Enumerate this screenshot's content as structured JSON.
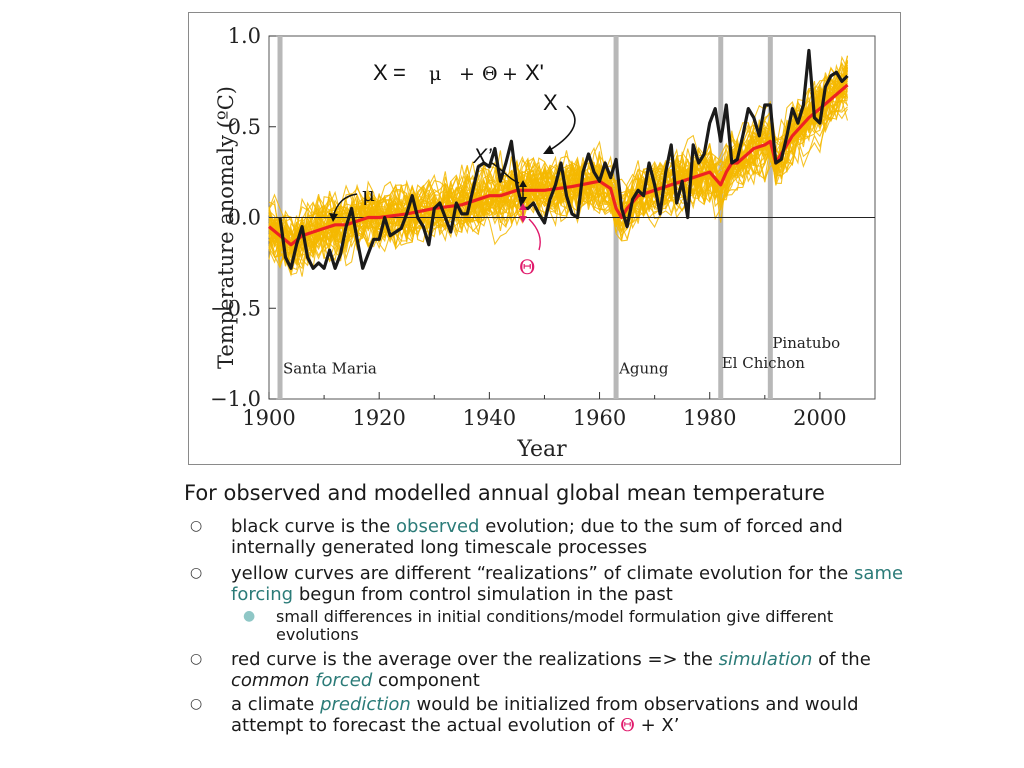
{
  "chart_data": {
    "type": "line",
    "xlabel": "Year",
    "ylabel": "Temperature anomaly (ºC)",
    "xlim": [
      1900,
      2010
    ],
    "ylim": [
      -1.0,
      1.0
    ],
    "x_ticks": [
      "1900",
      "1920",
      "1940",
      "1960",
      "1980",
      "2000"
    ],
    "y_ticks": [
      "−1.0",
      "−0.5",
      "0.0",
      "0.5",
      "1.0"
    ],
    "zero_line": 0.0,
    "series": [
      {
        "name": "observed",
        "color": "#1a1a1a",
        "x": [
          1902,
          1903,
          1904,
          1905,
          1906,
          1907,
          1908,
          1909,
          1910,
          1911,
          1912,
          1913,
          1914,
          1915,
          1916,
          1917,
          1918,
          1919,
          1920,
          1921,
          1922,
          1923,
          1924,
          1925,
          1926,
          1927,
          1928,
          1929,
          1930,
          1931,
          1932,
          1933,
          1934,
          1935,
          1936,
          1937,
          1938,
          1939,
          1940,
          1941,
          1942,
          1943,
          1944,
          1945,
          1946,
          1947,
          1948,
          1949,
          1950,
          1951,
          1952,
          1953,
          1954,
          1955,
          1956,
          1957,
          1958,
          1959,
          1960,
          1961,
          1962,
          1963,
          1964,
          1965,
          1966,
          1967,
          1968,
          1969,
          1970,
          1971,
          1972,
          1973,
          1974,
          1975,
          1976,
          1977,
          1978,
          1979,
          1980,
          1981,
          1982,
          1983,
          1984,
          1985,
          1986,
          1987,
          1988,
          1989,
          1990,
          1991,
          1992,
          1993,
          1994,
          1995,
          1996,
          1997,
          1998,
          1999,
          2000,
          2001,
          2002,
          2003,
          2004,
          2005
        ],
        "y": [
          0.0,
          -0.22,
          -0.28,
          -0.15,
          -0.05,
          -0.22,
          -0.28,
          -0.25,
          -0.28,
          -0.18,
          -0.28,
          -0.2,
          -0.05,
          0.05,
          -0.12,
          -0.28,
          -0.2,
          -0.12,
          -0.12,
          0.0,
          -0.1,
          -0.08,
          -0.06,
          0.02,
          0.12,
          0.0,
          -0.05,
          -0.15,
          0.05,
          0.08,
          0.0,
          -0.08,
          0.08,
          0.02,
          0.02,
          0.15,
          0.28,
          0.3,
          0.28,
          0.38,
          0.2,
          0.3,
          0.42,
          0.18,
          0.05,
          0.05,
          0.08,
          0.02,
          -0.03,
          0.1,
          0.18,
          0.3,
          0.12,
          0.02,
          0.0,
          0.25,
          0.35,
          0.25,
          0.2,
          0.3,
          0.22,
          0.32,
          0.05,
          -0.05,
          0.1,
          0.15,
          0.12,
          0.3,
          0.18,
          0.02,
          0.25,
          0.4,
          0.08,
          0.2,
          0.0,
          0.4,
          0.3,
          0.35,
          0.52,
          0.6,
          0.42,
          0.62,
          0.3,
          0.32,
          0.45,
          0.6,
          0.55,
          0.45,
          0.62,
          0.62,
          0.3,
          0.32,
          0.45,
          0.6,
          0.52,
          0.62,
          0.92,
          0.55,
          0.52,
          0.72,
          0.78,
          0.8,
          0.75,
          0.78
        ]
      },
      {
        "name": "simulation mean",
        "color": "#ee2222",
        "x": [
          1900,
          1902,
          1904,
          1906,
          1908,
          1910,
          1912,
          1914,
          1916,
          1918,
          1920,
          1925,
          1930,
          1935,
          1940,
          1942,
          1945,
          1950,
          1955,
          1960,
          1962,
          1963,
          1964,
          1965,
          1967,
          1970,
          1975,
          1980,
          1982,
          1983,
          1984,
          1985,
          1988,
          1990,
          1991,
          1992,
          1993,
          1995,
          1998,
          2000,
          2005
        ],
        "y": [
          -0.05,
          -0.1,
          -0.15,
          -0.1,
          -0.08,
          -0.06,
          -0.04,
          -0.04,
          -0.02,
          0.0,
          0.0,
          0.02,
          0.05,
          0.07,
          0.12,
          0.12,
          0.15,
          0.15,
          0.17,
          0.2,
          0.16,
          0.05,
          0.0,
          0.05,
          0.12,
          0.15,
          0.2,
          0.25,
          0.18,
          0.25,
          0.3,
          0.3,
          0.38,
          0.4,
          0.42,
          0.3,
          0.35,
          0.45,
          0.55,
          0.6,
          0.73
        ]
      }
    ],
    "volcanoes": [
      {
        "name": "Santa Maria",
        "year": 1902
      },
      {
        "name": "Agung",
        "year": 1963
      },
      {
        "name": "El Chichon",
        "year": 1982
      },
      {
        "name": "Pinatubo",
        "year": 1991
      }
    ],
    "annotations": {
      "equation": [
        "X",
        "=",
        "μ",
        "+",
        "Θ",
        "+",
        "X'"
      ],
      "x_label": "X",
      "xprime_label": "X’",
      "mu_label": "μ",
      "theta_label": "Θ"
    },
    "colors": {
      "realizations": "#f5b800",
      "observed": "#1a1a1a",
      "mean": "#ee2222",
      "volcano_line": "#b8b8b8",
      "theta": "#e0196b"
    }
  },
  "text": {
    "caption": "For observed and modelled annual global mean temperature",
    "b1_pre": "black curve is the ",
    "b1_hl": "observed",
    "b1_post": " evolution; due to the sum of forced and internally generated long timescale processes",
    "b2_pre": "yellow curves are different “realizations” of climate evolution for the ",
    "b2_hl": "same forcing",
    "b2_post": " begun from control simulation in the past",
    "b2_sub": "small differences in initial conditions/model formulation give different evolutions",
    "b3_pre": "red curve is the average over the realizations => the ",
    "b3_hl": "simulation",
    "b3_mid": " of the ",
    "b3_common": "common",
    "b3_space": " ",
    "b3_forced": "forced",
    "b3_post": " component",
    "b4_pre": "a climate ",
    "b4_hl": "prediction",
    "b4_mid": " would be initialized from observations and would attempt to forecast the actual evolution of ",
    "b4_theta": "Θ",
    "b4_post": " + X’",
    "bullet_glyph": "○",
    "sub_glyph": "●"
  }
}
